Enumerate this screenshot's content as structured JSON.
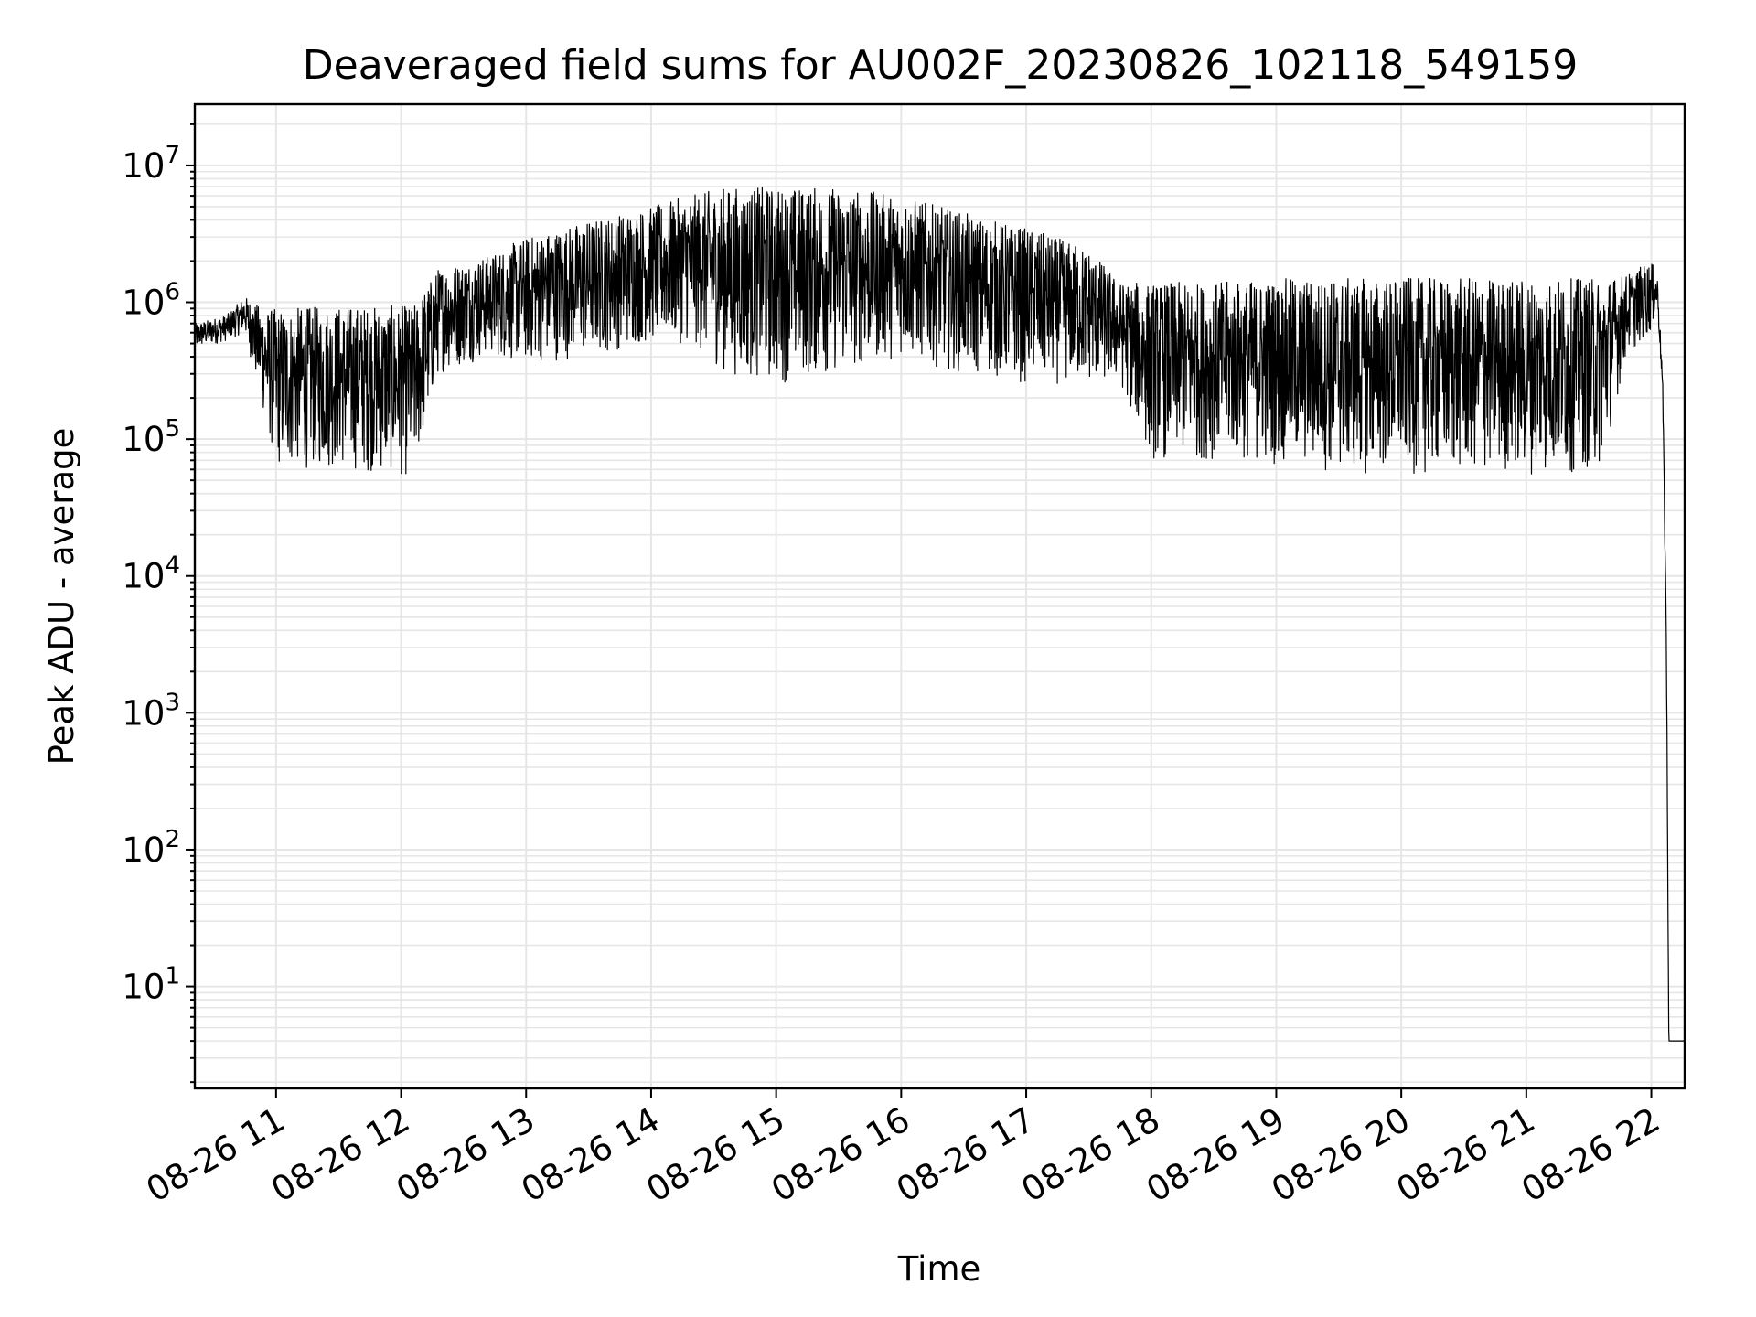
{
  "chart_data": {
    "type": "line",
    "title": "Deaveraged field sums for AU002F_20230826_102118_549159",
    "xlabel": "Time",
    "ylabel": "Peak ADU - average",
    "yscale": "log",
    "grid": "on (major and minor)",
    "xlim": [
      "2023-08-26 10:21",
      "2023-08-26 22:16"
    ],
    "ylim": [
      1.8,
      28000000
    ],
    "x_ticks": [
      "08-26 11",
      "08-26 12",
      "08-26 13",
      "08-26 14",
      "08-26 15",
      "08-26 16",
      "08-26 17",
      "08-26 18",
      "08-26 19",
      "08-26 20",
      "08-26 21",
      "08-26 22"
    ],
    "y_ticks": [
      {
        "value": 10,
        "base": "10",
        "exp": "1"
      },
      {
        "value": 100,
        "base": "10",
        "exp": "2"
      },
      {
        "value": 1000,
        "base": "10",
        "exp": "3"
      },
      {
        "value": 10000,
        "base": "10",
        "exp": "4"
      },
      {
        "value": 100000,
        "base": "10",
        "exp": "5"
      },
      {
        "value": 1000000,
        "base": "10",
        "exp": "6"
      },
      {
        "value": 10000000,
        "base": "10",
        "exp": "7"
      }
    ],
    "series_envelope": {
      "description_hours": "approximate low/high envelope of the noisy series",
      "x": [
        10.35,
        10.6,
        10.75,
        10.9,
        11.0,
        11.5,
        11.9,
        12.1,
        12.3,
        12.7,
        13.0,
        13.5,
        14.0,
        14.3,
        14.6,
        15.0,
        15.5,
        16.0,
        16.5,
        17.0,
        17.5,
        17.75,
        18.0,
        18.5,
        19.0,
        19.5,
        20.0,
        20.5,
        21.0,
        21.3,
        21.6,
        21.8,
        22.0,
        22.05,
        22.09,
        22.12,
        22.14,
        22.27
      ],
      "low": [
        450000,
        520000,
        600000,
        150000,
        60000,
        60000,
        55000,
        50000,
        300000,
        400000,
        350000,
        400000,
        500000,
        500000,
        300000,
        250000,
        300000,
        400000,
        300000,
        250000,
        250000,
        250000,
        70000,
        70000,
        65000,
        55000,
        55000,
        55000,
        55000,
        55000,
        60000,
        400000,
        600000,
        900000,
        200000,
        3000,
        4,
        4
      ],
      "high": [
        700000,
        800000,
        1100000,
        900000,
        900000,
        950000,
        950000,
        950000,
        1800000,
        2200000,
        3000000,
        4000000,
        5000000,
        6000000,
        7000000,
        7000000,
        7000000,
        6000000,
        4500000,
        3500000,
        2500000,
        1400000,
        1400000,
        1400000,
        1500000,
        1500000,
        1500000,
        1500000,
        1500000,
        1500000,
        1500000,
        1600000,
        2000000,
        1500000,
        300000,
        5000,
        4,
        4
      ]
    }
  }
}
